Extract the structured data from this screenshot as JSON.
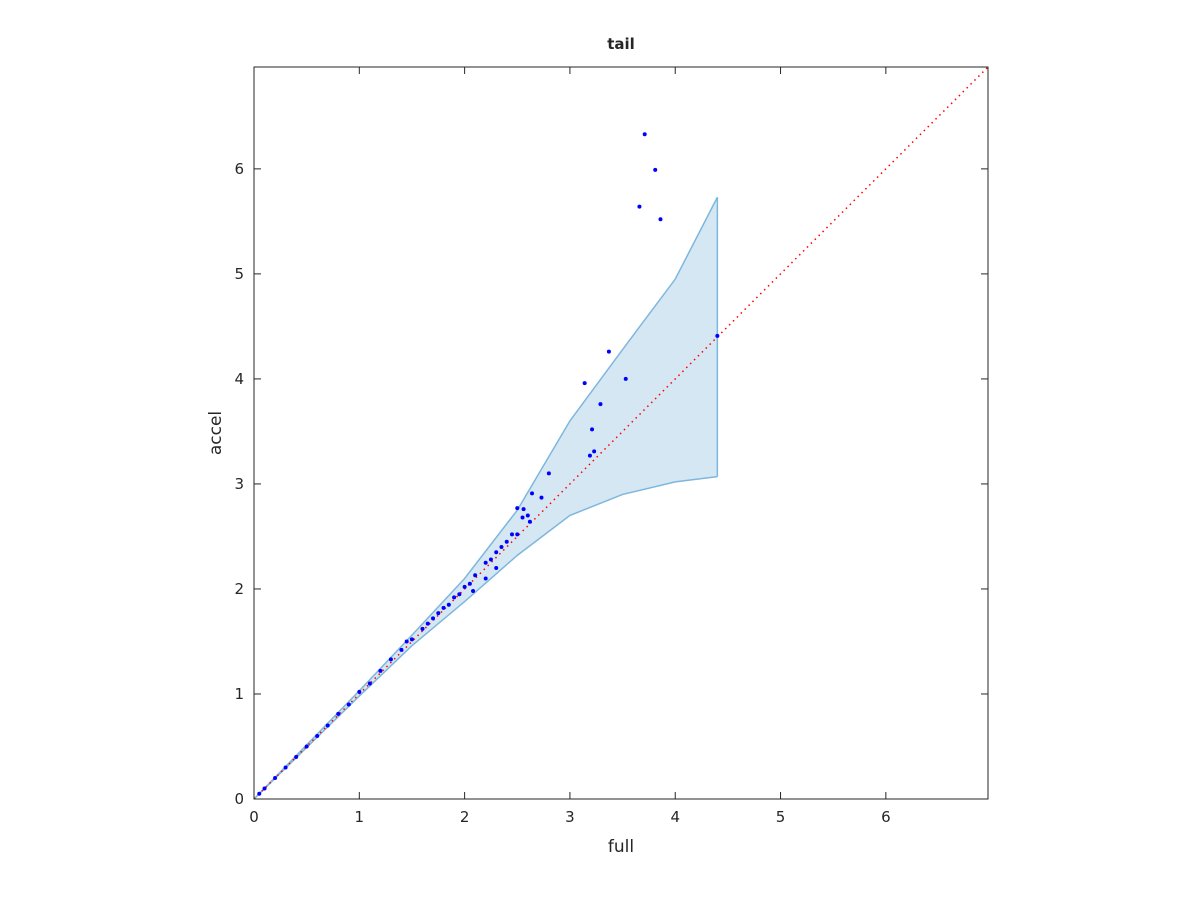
{
  "chart_data": {
    "type": "scatter",
    "title": "tail",
    "x_label": "full",
    "y_label": "accel",
    "xlim": [
      0,
      6.97
    ],
    "ylim": [
      0,
      6.97
    ],
    "xticks": [
      0,
      1,
      2,
      3,
      4,
      5,
      6
    ],
    "yticks": [
      0,
      1,
      2,
      3,
      4,
      5,
      6
    ],
    "band": {
      "color": "#7db7de",
      "fill": "#d6e7f4",
      "x": [
        0,
        1,
        1.5,
        2,
        2.5,
        3,
        3.5,
        4,
        4.4
      ],
      "upper": [
        0,
        1.03,
        1.56,
        2.1,
        2.75,
        3.6,
        4.28,
        4.95,
        5.73
      ],
      "lower": [
        0,
        0.98,
        1.46,
        1.88,
        2.32,
        2.7,
        2.9,
        3.02,
        3.07
      ]
    },
    "reference": {
      "color": "#ff0000",
      "x": [
        0,
        6.97
      ],
      "y": [
        0,
        6.97
      ]
    },
    "points": {
      "color": "#0000ff",
      "x": [
        3.71,
        3.81,
        3.66,
        3.86,
        3.37,
        3.14,
        3.53,
        3.29,
        3.21,
        3.19,
        3.23,
        4.4,
        2.8,
        2.64,
        2.73,
        2.5,
        2.56,
        2.55,
        2.6,
        2.62,
        2.45,
        2.5,
        2.4,
        2.35,
        2.3,
        2.25,
        2.2,
        2.3,
        2.2,
        2.1,
        2.05,
        2.0,
        1.95,
        2.08,
        1.9,
        1.85,
        1.8,
        1.75,
        1.7,
        1.65,
        1.6,
        1.5,
        1.45,
        1.4,
        1.3,
        1.2,
        1.1,
        1.0,
        0.9,
        0.8,
        0.7,
        0.6,
        0.5,
        0.4,
        0.3,
        0.2,
        0.1,
        0.05
      ],
      "y": [
        6.33,
        5.99,
        5.64,
        5.52,
        4.26,
        3.96,
        4.0,
        3.76,
        3.52,
        3.27,
        3.31,
        4.41,
        3.1,
        2.91,
        2.87,
        2.77,
        2.76,
        2.68,
        2.7,
        2.64,
        2.52,
        2.52,
        2.45,
        2.4,
        2.35,
        2.28,
        2.25,
        2.2,
        2.1,
        2.13,
        2.05,
        2.02,
        1.95,
        1.98,
        1.92,
        1.85,
        1.82,
        1.77,
        1.72,
        1.67,
        1.62,
        1.52,
        1.5,
        1.42,
        1.33,
        1.22,
        1.1,
        1.02,
        0.9,
        0.81,
        0.7,
        0.6,
        0.5,
        0.4,
        0.3,
        0.2,
        0.1,
        0.05
      ]
    }
  }
}
